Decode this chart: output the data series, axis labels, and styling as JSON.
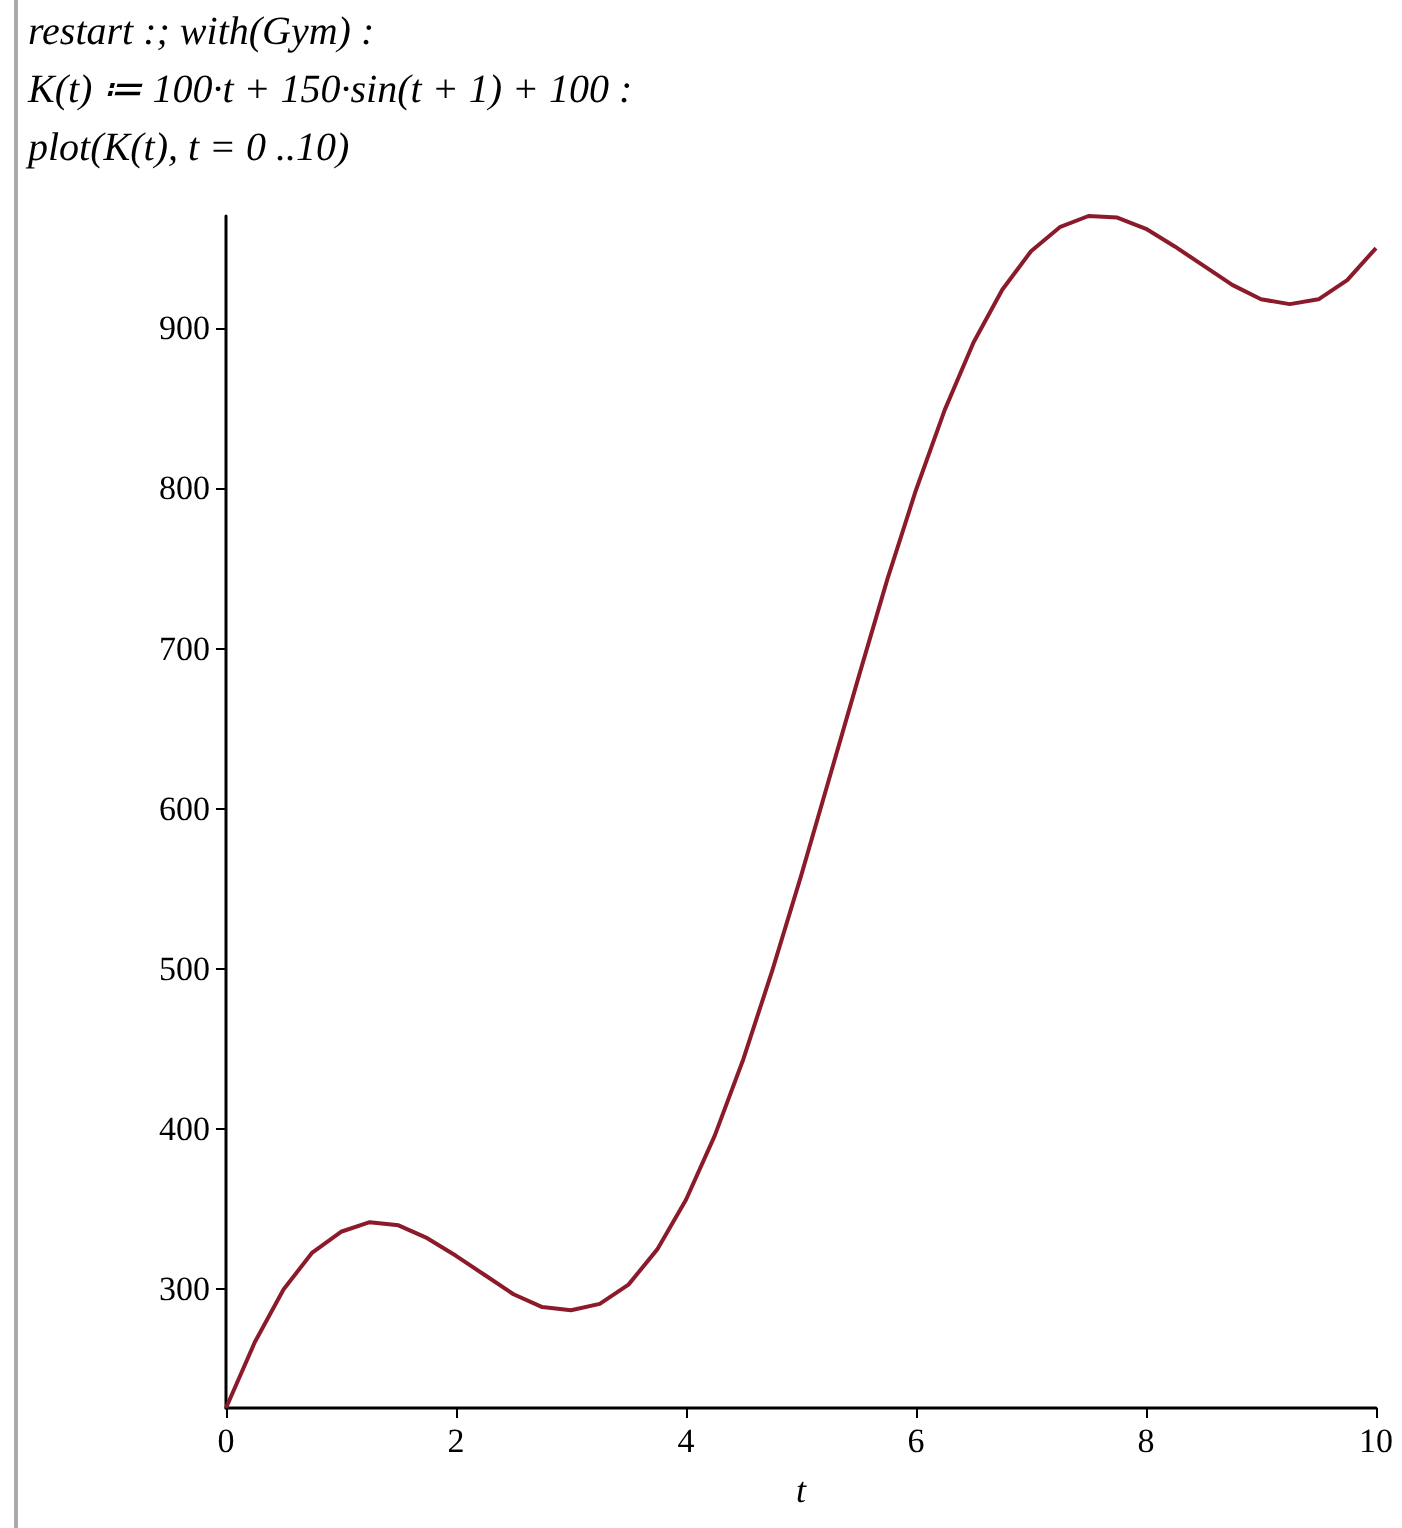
{
  "chart_data": {
    "type": "line",
    "annotations": [
      "restart :; with(Gym) :",
      "K(t) ≔ 100·t + 150·sin(t + 1) + 100 :",
      "plot(K(t), t = 0 ..10)"
    ],
    "xlabel": "t",
    "x": [
      0,
      0.25,
      0.5,
      0.75,
      1,
      1.25,
      1.5,
      1.75,
      2,
      2.25,
      2.5,
      2.75,
      3,
      3.25,
      3.5,
      3.75,
      4,
      4.25,
      4.5,
      4.75,
      5,
      5.25,
      5.5,
      5.75,
      6,
      6.25,
      6.5,
      6.75,
      7,
      7.25,
      7.5,
      7.75,
      8,
      8.25,
      8.5,
      8.75,
      9,
      9.25,
      9.5,
      9.75,
      10
    ],
    "series": [
      {
        "color": "#8b1a2b",
        "values": [
          226,
          267,
          300,
          323,
          336,
          342,
          340,
          332,
          321,
          309,
          297,
          289,
          287,
          291,
          303,
          325,
          356,
          396,
          444,
          499,
          558,
          620,
          682,
          743,
          799,
          849,
          891,
          924,
          948,
          963,
          970,
          969,
          962,
          951,
          939,
          927,
          918,
          915,
          918,
          930,
          950
        ]
      }
    ],
    "xlim": [
      0,
      10
    ],
    "xticks": [
      0,
      2,
      4,
      6,
      8,
      10
    ],
    "ylim": [
      226,
      970
    ],
    "yticks": [
      300,
      400,
      500,
      600,
      700,
      800,
      900
    ],
    "grid": false,
    "marker": "none",
    "line_style": "solid"
  }
}
